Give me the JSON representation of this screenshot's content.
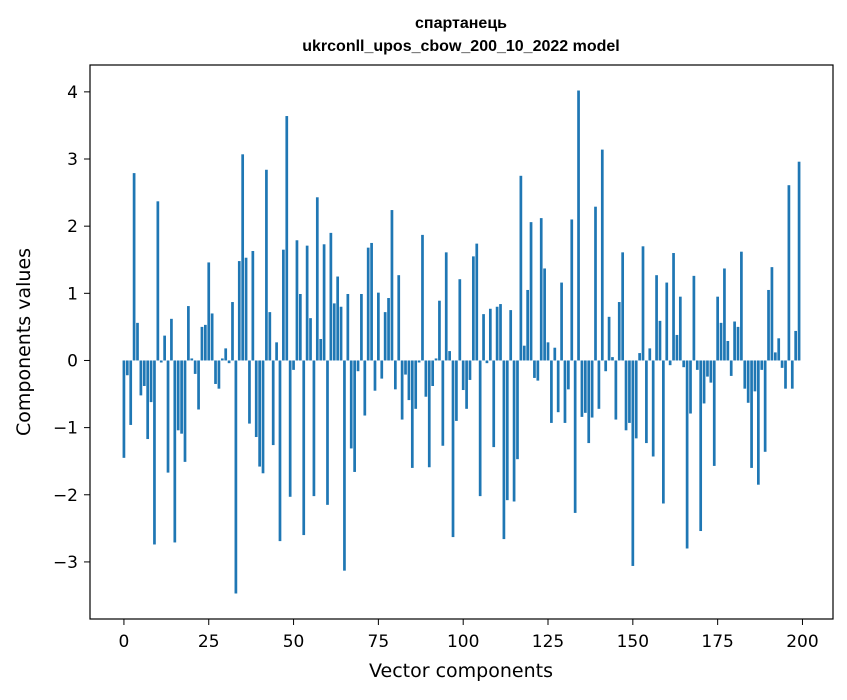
{
  "chart_data": {
    "type": "bar",
    "title": "спартанець",
    "subtitle": "ukrconll_upos_cbow_200_10_2022 model",
    "xlabel": "Vector components",
    "ylabel": "Components values",
    "xlim": [
      -10,
      209
    ],
    "ylim": [
      -3.85,
      4.4
    ],
    "xticks": [
      0,
      25,
      50,
      75,
      100,
      125,
      150,
      175,
      200
    ],
    "yticks": [
      -3,
      -2,
      -1,
      0,
      1,
      2,
      3,
      4
    ],
    "ytick_labels": [
      "−3",
      "−2",
      "−1",
      "0",
      "1",
      "2",
      "3",
      "4"
    ],
    "bar_color": "#1f77b4",
    "grid": false,
    "legend": "none",
    "x": [
      0,
      1,
      2,
      3,
      4,
      5,
      6,
      7,
      8,
      9,
      10,
      11,
      12,
      13,
      14,
      15,
      16,
      17,
      18,
      19,
      20,
      21,
      22,
      23,
      24,
      25,
      26,
      27,
      28,
      29,
      30,
      31,
      32,
      33,
      34,
      35,
      36,
      37,
      38,
      39,
      40,
      41,
      42,
      43,
      44,
      45,
      46,
      47,
      48,
      49,
      50,
      51,
      52,
      53,
      54,
      55,
      56,
      57,
      58,
      59,
      60,
      61,
      62,
      63,
      64,
      65,
      66,
      67,
      68,
      69,
      70,
      71,
      72,
      73,
      74,
      75,
      76,
      77,
      78,
      79,
      80,
      81,
      82,
      83,
      84,
      85,
      86,
      87,
      88,
      89,
      90,
      91,
      92,
      93,
      94,
      95,
      96,
      97,
      98,
      99,
      100,
      101,
      102,
      103,
      104,
      105,
      106,
      107,
      108,
      109,
      110,
      111,
      112,
      113,
      114,
      115,
      116,
      117,
      118,
      119,
      120,
      121,
      122,
      123,
      124,
      125,
      126,
      127,
      128,
      129,
      130,
      131,
      132,
      133,
      134,
      135,
      136,
      137,
      138,
      139,
      140,
      141,
      142,
      143,
      144,
      145,
      146,
      147,
      148,
      149,
      150,
      151,
      152,
      153,
      154,
      155,
      156,
      157,
      158,
      159,
      160,
      161,
      162,
      163,
      164,
      165,
      166,
      167,
      168,
      169,
      170,
      171,
      172,
      173,
      174,
      175,
      176,
      177,
      178,
      179,
      180,
      181,
      182,
      183,
      184,
      185,
      186,
      187,
      188,
      189,
      190,
      191,
      192,
      193,
      194,
      195,
      196,
      197,
      198,
      199
    ],
    "values": [
      -1.45,
      -0.22,
      -0.96,
      2.79,
      0.56,
      -0.52,
      -0.38,
      -1.17,
      -0.62,
      -2.74,
      2.37,
      -0.03,
      0.37,
      -1.67,
      0.62,
      -2.71,
      -1.04,
      -1.09,
      -1.51,
      0.81,
      0.03,
      -0.2,
      -0.73,
      0.5,
      0.53,
      1.46,
      0.7,
      -0.35,
      -0.42,
      0.03,
      0.18,
      -0.04,
      0.87,
      -3.47,
      1.48,
      3.07,
      1.53,
      -0.94,
      1.63,
      -1.14,
      -1.58,
      -1.68,
      2.84,
      0.72,
      -1.26,
      0.27,
      -2.69,
      1.65,
      3.64,
      -2.03,
      -0.14,
      1.79,
      0.99,
      -2.6,
      1.71,
      0.63,
      -2.02,
      2.43,
      0.32,
      1.73,
      -2.15,
      1.9,
      0.85,
      1.25,
      0.8,
      -3.13,
      0.99,
      -1.31,
      -1.66,
      -0.16,
      0.99,
      -0.82,
      1.68,
      1.75,
      -0.45,
      1.01,
      -0.27,
      0.72,
      0.93,
      2.24,
      -0.43,
      1.27,
      -0.88,
      -0.21,
      -0.59,
      -1.6,
      -0.72,
      -0.03,
      1.87,
      -0.54,
      -1.59,
      -0.38,
      0.03,
      0.89,
      -1.27,
      1.61,
      0.14,
      -2.63,
      -0.9,
      1.21,
      -0.44,
      -0.72,
      -0.29,
      1.55,
      1.74,
      -2.02,
      0.69,
      -0.04,
      0.77,
      -1.29,
      0.8,
      0.84,
      -2.66,
      -2.08,
      0.75,
      -2.1,
      -1.47,
      2.75,
      0.22,
      1.05,
      2.06,
      -0.26,
      -0.3,
      2.12,
      1.37,
      0.27,
      -0.93,
      0.19,
      -0.77,
      1.16,
      -0.93,
      -0.43,
      2.1,
      -2.27,
      4.02,
      -0.84,
      -0.78,
      -1.23,
      -0.85,
      2.29,
      -0.72,
      3.14,
      -0.16,
      0.65,
      0.05,
      -0.88,
      0.87,
      1.61,
      -1.04,
      -0.93,
      -3.06,
      -1.16,
      0.11,
      1.7,
      -1.23,
      0.18,
      -1.43,
      1.27,
      0.59,
      -2.13,
      1.16,
      -0.07,
      1.6,
      0.38,
      0.95,
      -0.1,
      -2.8,
      -0.79,
      1.26,
      -0.14,
      -2.54,
      -0.64,
      -0.24,
      -0.33,
      -1.57,
      0.95,
      0.56,
      1.37,
      0.29,
      -0.23,
      0.58,
      0.5,
      1.62,
      -0.42,
      -0.63,
      -1.6,
      -0.46,
      -1.85,
      -0.14,
      -1.36,
      1.05,
      1.39,
      0.12,
      0.33,
      -0.11,
      -0.42,
      2.61,
      -0.42,
      0.44,
      2.96
    ]
  }
}
